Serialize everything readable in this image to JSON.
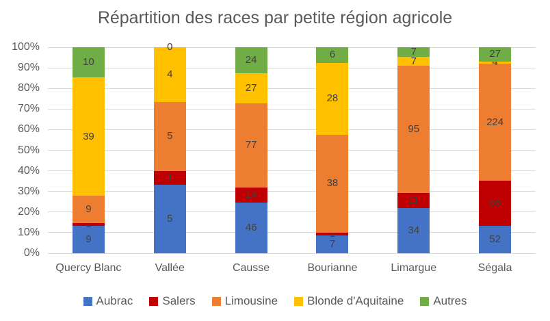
{
  "title": "Répartition des races par petite région agricole",
  "chart_data": {
    "type": "bar",
    "variant": "stacked-100-percent-column",
    "title": "Répartition des races par petite région agricole",
    "categories": [
      "Quercy Blanc",
      "Vallée",
      "Causse",
      "Bourianne",
      "Limargue",
      "Ségala"
    ],
    "series": [
      {
        "name": "Aubrac",
        "color": "#4472c4",
        "values": [
          9,
          5,
          46,
          7,
          34,
          52
        ]
      },
      {
        "name": "Salers",
        "color": "#c00000",
        "values": [
          1,
          1,
          14,
          1,
          11,
          86
        ]
      },
      {
        "name": "Limousine",
        "color": "#ed7d31",
        "values": [
          9,
          5,
          77,
          38,
          95,
          224
        ]
      },
      {
        "name": "Blonde d'Aquitaine",
        "color": "#ffc000",
        "values": [
          39,
          4,
          27,
          28,
          7,
          4
        ]
      },
      {
        "name": "Autres",
        "color": "#70ad47",
        "values": [
          10,
          0,
          24,
          6,
          7,
          27
        ]
      }
    ],
    "y_ticks": [
      "0%",
      "10%",
      "20%",
      "30%",
      "40%",
      "50%",
      "60%",
      "70%",
      "80%",
      "90%",
      "100%"
    ],
    "ylim": [
      0,
      100
    ],
    "xlabel": "",
    "ylabel": "",
    "grid": true,
    "data_labels": true,
    "legend_position": "bottom",
    "colors": {
      "text_axis": "#595959",
      "text_title": "#595959",
      "text_data_label": "#404040",
      "gridline": "#d9d9d9",
      "background": "#ffffff"
    }
  }
}
